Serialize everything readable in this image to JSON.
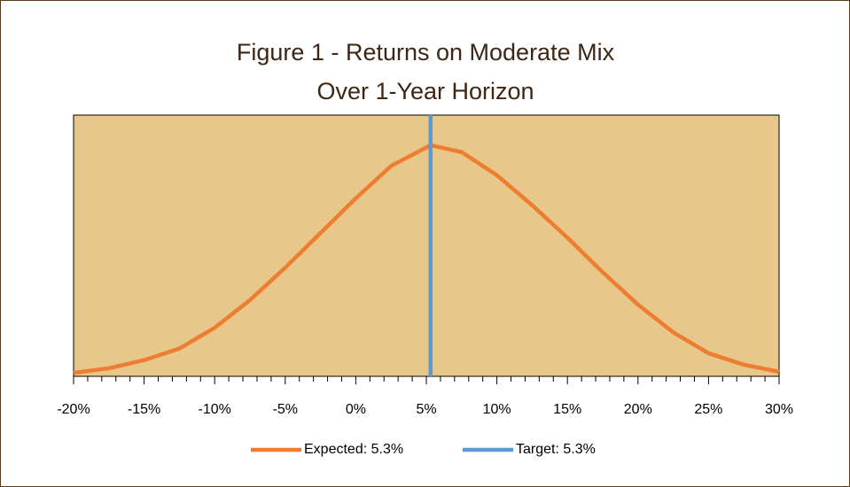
{
  "chart_data": {
    "type": "line",
    "title": [
      "Figure 1 - Returns on Moderate Mix",
      "Over 1-Year Horizon"
    ],
    "series": [
      {
        "name": "Expected: 5.3%",
        "color": "#ed7d31",
        "x": [
          -20,
          -17.5,
          -15,
          -12.5,
          -10,
          -7.5,
          -5,
          -2.5,
          0,
          2.5,
          5,
          5.3,
          7.5,
          10,
          12.5,
          15,
          17.5,
          20,
          22.5,
          25,
          27.5,
          30
        ],
        "values": [
          0.015,
          0.035,
          0.07,
          0.12,
          0.21,
          0.33,
          0.47,
          0.62,
          0.77,
          0.91,
          0.99,
          1.0,
          0.97,
          0.87,
          0.74,
          0.6,
          0.45,
          0.31,
          0.19,
          0.1,
          0.05,
          0.02
        ]
      },
      {
        "name": "Target: 5.3%",
        "color": "#5b9bd5",
        "x": [
          5.3,
          5.3
        ],
        "values": [
          0,
          1.13
        ]
      }
    ],
    "xlim": [
      -20,
      30
    ],
    "xticks": [
      {
        "value": -20,
        "label": "-20%"
      },
      {
        "value": -15,
        "label": "-15%"
      },
      {
        "value": -10,
        "label": "-10%"
      },
      {
        "value": -5,
        "label": "-5%"
      },
      {
        "value": 0,
        "label": "0%"
      },
      {
        "value": 5,
        "label": "5%"
      },
      {
        "value": 10,
        "label": "10%"
      },
      {
        "value": 15,
        "label": "15%"
      },
      {
        "value": 20,
        "label": "20%"
      },
      {
        "value": 25,
        "label": "25%"
      },
      {
        "value": 30,
        "label": "30%"
      }
    ],
    "ylim": [
      0,
      1.13
    ],
    "plot_background": "#e8c78a",
    "legend": "bottom"
  }
}
